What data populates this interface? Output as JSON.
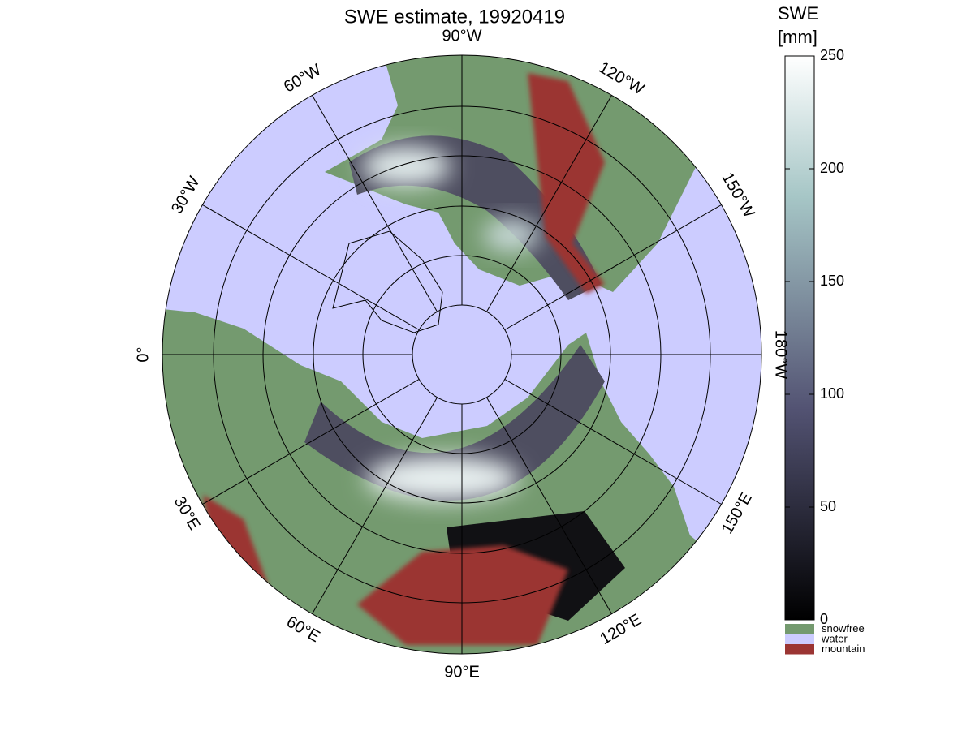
{
  "title": "SWE estimate, 19920419",
  "longitude_labels": [
    "0°",
    "30°E",
    "60°E",
    "90°E",
    "120°E",
    "150°E",
    "180°W",
    "150°W",
    "120°W",
    "90°W",
    "60°W",
    "30°W"
  ],
  "colorbar": {
    "title": [
      "SWE",
      "[mm]"
    ],
    "lim": [
      0,
      250
    ],
    "ticks": [
      0,
      50,
      100,
      150,
      200,
      250
    ]
  },
  "legend": [
    {
      "label": "snowfree",
      "color": "#749a6f"
    },
    {
      "label": "water",
      "color": "#ccccff"
    },
    {
      "label": "mountain",
      "color": "#9b3533"
    }
  ]
}
